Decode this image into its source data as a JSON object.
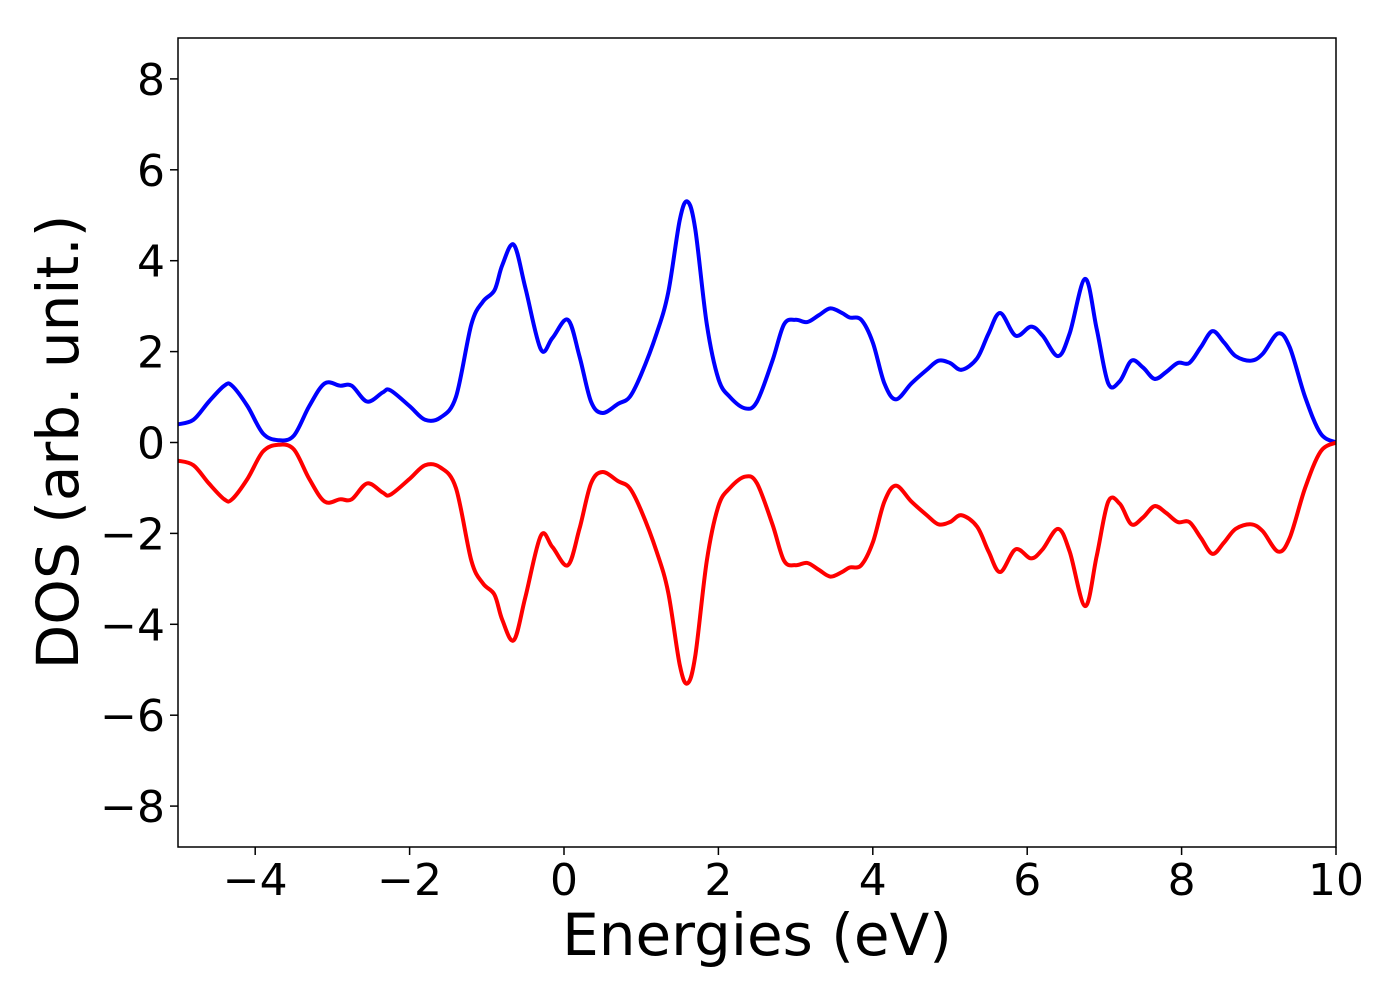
{
  "chart_data": {
    "type": "line",
    "xlabel": "Energies (eV)",
    "ylabel": "DOS (arb. unit.)",
    "xlim": [
      -5,
      10
    ],
    "ylim": [
      -8.9,
      8.9
    ],
    "xticks": [
      {
        "value": -4,
        "label": "−4"
      },
      {
        "value": -2,
        "label": "−2"
      },
      0,
      2,
      4,
      6,
      8,
      10
    ],
    "yticks": [
      {
        "value": -8,
        "label": "−8"
      },
      {
        "value": -6,
        "label": "−6"
      },
      {
        "value": -4,
        "label": "−4"
      },
      {
        "value": -2,
        "label": "−2"
      },
      0,
      2,
      4,
      6,
      8
    ],
    "x": [
      -5,
      -4.8,
      -4.6,
      -4.4,
      -4.3,
      -4.1,
      -3.9,
      -3.7,
      -3.5,
      -3.3,
      -3.1,
      -2.9,
      -2.75,
      -2.55,
      -2.35,
      -2.25,
      -2.0,
      -1.8,
      -1.6,
      -1.4,
      -1.2,
      -1.05,
      -0.9,
      -0.8,
      -0.65,
      -0.5,
      -0.3,
      -0.15,
      0.05,
      0.2,
      0.35,
      0.5,
      0.7,
      0.85,
      1.0,
      1.2,
      1.35,
      1.5,
      1.6,
      1.7,
      1.85,
      2.0,
      2.15,
      2.35,
      2.5,
      2.7,
      2.85,
      3.0,
      3.15,
      3.3,
      3.45,
      3.6,
      3.7,
      3.85,
      4.0,
      4.15,
      4.3,
      4.5,
      4.7,
      4.85,
      5.0,
      5.15,
      5.35,
      5.5,
      5.65,
      5.85,
      6.05,
      6.2,
      6.4,
      6.55,
      6.75,
      6.9,
      7.05,
      7.2,
      7.35,
      7.5,
      7.65,
      7.8,
      7.95,
      8.1,
      8.25,
      8.4,
      8.55,
      8.7,
      8.9,
      9.05,
      9.25,
      9.4,
      9.6,
      9.8,
      10
    ],
    "series": [
      {
        "color": "#0000ff",
        "values": [
          0.4,
          0.5,
          0.9,
          1.25,
          1.25,
          0.8,
          0.2,
          0.05,
          0.15,
          0.8,
          1.3,
          1.25,
          1.25,
          0.9,
          1.1,
          1.15,
          0.8,
          0.5,
          0.55,
          1.0,
          2.6,
          3.1,
          3.35,
          3.9,
          4.35,
          3.4,
          2.05,
          2.3,
          2.7,
          1.9,
          0.9,
          0.65,
          0.85,
          1.0,
          1.5,
          2.4,
          3.3,
          4.9,
          5.3,
          4.7,
          2.6,
          1.4,
          1.0,
          0.75,
          0.9,
          1.8,
          2.6,
          2.7,
          2.65,
          2.8,
          2.95,
          2.85,
          2.75,
          2.7,
          2.2,
          1.3,
          0.95,
          1.3,
          1.6,
          1.8,
          1.75,
          1.6,
          1.85,
          2.4,
          2.85,
          2.35,
          2.55,
          2.35,
          1.9,
          2.4,
          3.6,
          2.5,
          1.3,
          1.35,
          1.8,
          1.65,
          1.4,
          1.55,
          1.75,
          1.75,
          2.1,
          2.45,
          2.2,
          1.9,
          1.8,
          1.95,
          2.4,
          2.1,
          1.0,
          0.2,
          0.0
        ]
      },
      {
        "color": "#ff0000",
        "values": [
          -0.4,
          -0.5,
          -0.9,
          -1.25,
          -1.25,
          -0.8,
          -0.2,
          -0.05,
          -0.15,
          -0.8,
          -1.3,
          -1.25,
          -1.25,
          -0.9,
          -1.1,
          -1.15,
          -0.8,
          -0.5,
          -0.55,
          -1.0,
          -2.6,
          -3.1,
          -3.35,
          -3.9,
          -4.35,
          -3.4,
          -2.05,
          -2.3,
          -2.7,
          -1.9,
          -0.9,
          -0.65,
          -0.85,
          -1.0,
          -1.5,
          -2.4,
          -3.3,
          -4.9,
          -5.3,
          -4.7,
          -2.6,
          -1.4,
          -1.0,
          -0.75,
          -0.9,
          -1.8,
          -2.6,
          -2.7,
          -2.65,
          -2.8,
          -2.95,
          -2.85,
          -2.75,
          -2.7,
          -2.2,
          -1.3,
          -0.95,
          -1.3,
          -1.6,
          -1.8,
          -1.75,
          -1.6,
          -1.85,
          -2.4,
          -2.85,
          -2.35,
          -2.55,
          -2.35,
          -1.9,
          -2.4,
          -3.6,
          -2.5,
          -1.3,
          -1.35,
          -1.8,
          -1.65,
          -1.4,
          -1.55,
          -1.75,
          -1.75,
          -2.1,
          -2.45,
          -2.2,
          -1.9,
          -1.8,
          -1.95,
          -2.4,
          -2.1,
          -1.0,
          -0.2,
          0.0
        ]
      }
    ]
  }
}
